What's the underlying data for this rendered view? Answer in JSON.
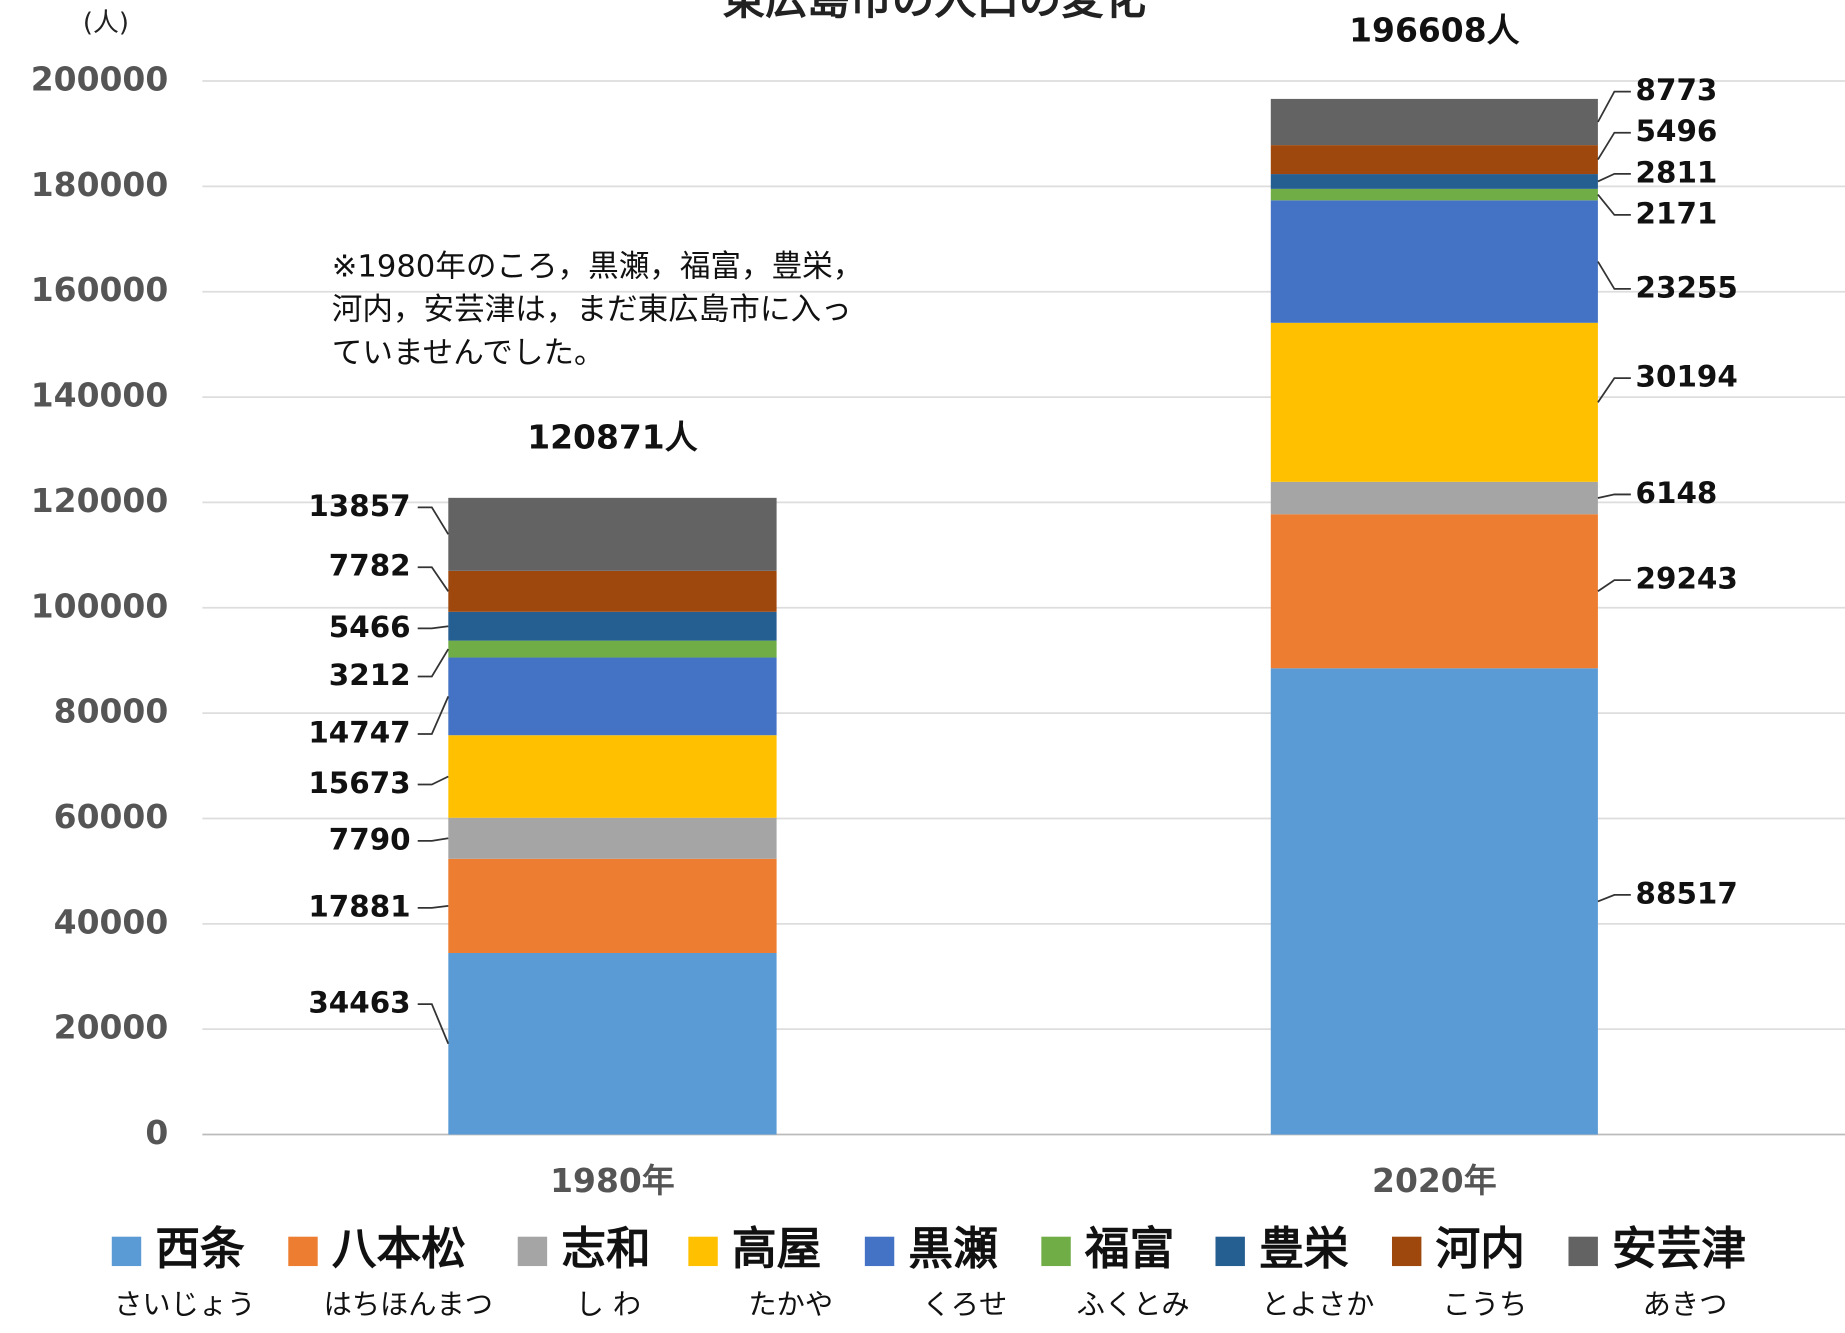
{
  "chart_data": {
    "type": "stacked_bar",
    "title": "東広島市の人口の変化",
    "y_unit_label": "(人)",
    "categories": [
      "1980年",
      "2020年"
    ],
    "total_labels": [
      "120871人",
      "196608人"
    ],
    "note_lines": [
      "※1980年のころ，黒瀬，福富，豊栄，",
      "河内，安芸津は，まだ東広島市に入っ",
      "ていませんでした。"
    ],
    "series": [
      {
        "name": "西条",
        "reading": "さいじょう",
        "color": "#5b9bd5",
        "values": [
          34463,
          88517
        ]
      },
      {
        "name": "八本松",
        "reading": "はちほんまつ",
        "color": "#ed7d31",
        "values": [
          17881,
          29243
        ]
      },
      {
        "name": "志和",
        "reading": "し わ",
        "color": "#a5a5a5",
        "values": [
          7790,
          6148
        ]
      },
      {
        "name": "高屋",
        "reading": "たかや",
        "color": "#ffc000",
        "values": [
          15673,
          30194
        ]
      },
      {
        "name": "黒瀬",
        "reading": "くろせ",
        "color": "#4472c4",
        "values": [
          14747,
          23255
        ]
      },
      {
        "name": "福富",
        "reading": "ふくとみ",
        "color": "#70ad47",
        "values": [
          3212,
          2171
        ]
      },
      {
        "name": "豊栄",
        "reading": "とよさか",
        "color": "#255e91",
        "values": [
          5466,
          2811
        ]
      },
      {
        "name": "河内",
        "reading": "こうち",
        "color": "#9e480e",
        "values": [
          7782,
          5496
        ]
      },
      {
        "name": "安芸津",
        "reading": "あきつ",
        "color": "#636363",
        "values": [
          13857,
          8773
        ]
      }
    ],
    "ylim": [
      0,
      200000
    ],
    "yticks": [
      0,
      20000,
      40000,
      60000,
      80000,
      100000,
      120000,
      140000,
      160000,
      180000,
      200000
    ],
    "grid": true
  }
}
